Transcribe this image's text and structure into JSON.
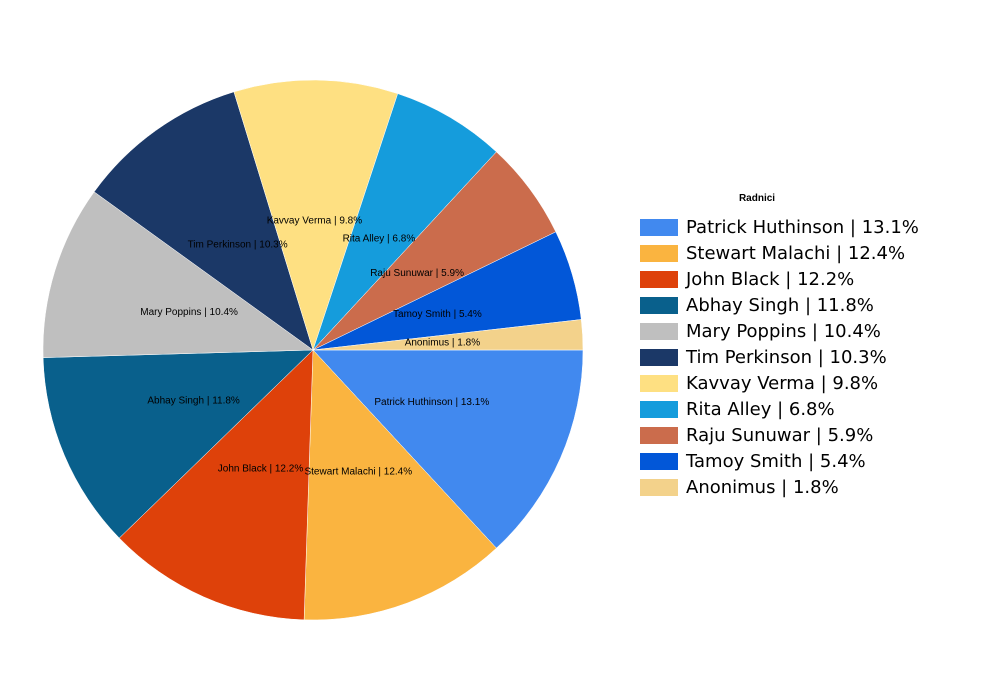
{
  "chart_data": {
    "type": "pie",
    "title": "",
    "legend_title": "Radnici",
    "legend_position": "right",
    "slices": [
      {
        "name": "Patrick Huthinson",
        "value": 13.1,
        "label": "Patrick Huthinson | 13.1%",
        "color": "#4189ef"
      },
      {
        "name": "Stewart Malachi",
        "value": 12.4,
        "label": "Stewart Malachi | 12.4%",
        "color": "#fab440"
      },
      {
        "name": "John Black",
        "value": 12.2,
        "label": "John Black | 12.2%",
        "color": "#de410a"
      },
      {
        "name": "Abhay Singh",
        "value": 11.8,
        "label": "Abhay Singh | 11.8%",
        "color": "#09608c"
      },
      {
        "name": "Mary Poppins",
        "value": 10.4,
        "label": "Mary Poppins | 10.4%",
        "color": "#bfbfbf"
      },
      {
        "name": "Tim Perkinson",
        "value": 10.3,
        "label": "Tim Perkinson | 10.3%",
        "color": "#1b3867"
      },
      {
        "name": "Kavvay Verma",
        "value": 9.8,
        "label": "Kavvay Verma | 9.8%",
        "color": "#fee082"
      },
      {
        "name": "Rita Alley",
        "value": 6.8,
        "label": "Rita Alley | 6.8%",
        "color": "#159cdc"
      },
      {
        "name": "Raju Sunuwar",
        "value": 5.9,
        "label": "Raju Sunuwar | 5.9%",
        "color": "#cb6c4c"
      },
      {
        "name": "Tamoy Smith",
        "value": 5.4,
        "label": "Tamoy Smith | 5.4%",
        "color": "#0257d8"
      },
      {
        "name": "Anonimus",
        "value": 1.8,
        "label": "Anonimus | 1.8%",
        "color": "#f3d28b"
      }
    ]
  }
}
